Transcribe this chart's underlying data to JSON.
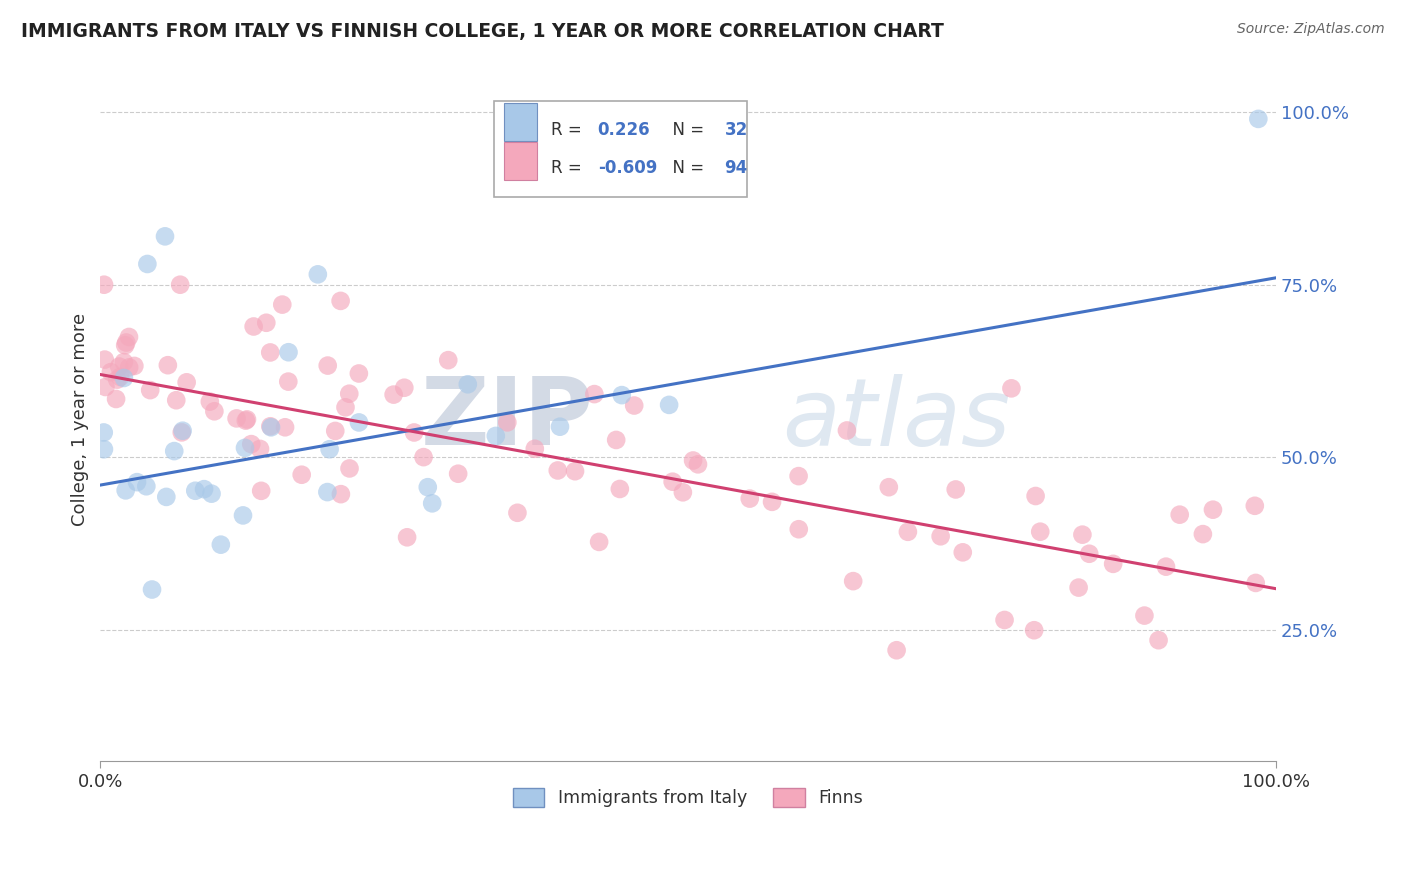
{
  "title": "IMMIGRANTS FROM ITALY VS FINNISH COLLEGE, 1 YEAR OR MORE CORRELATION CHART",
  "source": "Source: ZipAtlas.com",
  "ylabel": "College, 1 year or more",
  "r_italy": 0.226,
  "n_italy": 32,
  "r_finns": -0.609,
  "n_finns": 94,
  "italy_color": "#a8c8e8",
  "finns_color": "#f4a8bc",
  "italy_line_color": "#4472c4",
  "finns_line_color": "#d04070",
  "legend_label_italy": "Immigrants from Italy",
  "legend_label_finns": "Finns",
  "watermark_zip": "ZIP",
  "watermark_atlas": "atlas",
  "italy_line_x": [
    0.0,
    1.0
  ],
  "italy_line_y": [
    0.46,
    0.76
  ],
  "finns_line_x": [
    0.0,
    1.0
  ],
  "finns_line_y": [
    0.62,
    0.31
  ],
  "ytick_values": [
    0.25,
    0.5,
    0.75,
    1.0
  ],
  "ytick_labels": [
    "25.0%",
    "50.0%",
    "75.0%",
    "100.0%"
  ],
  "xlim": [
    0.0,
    1.0
  ],
  "ylim": [
    0.06,
    1.05
  ],
  "grid_color": "#cccccc",
  "background_color": "#ffffff"
}
